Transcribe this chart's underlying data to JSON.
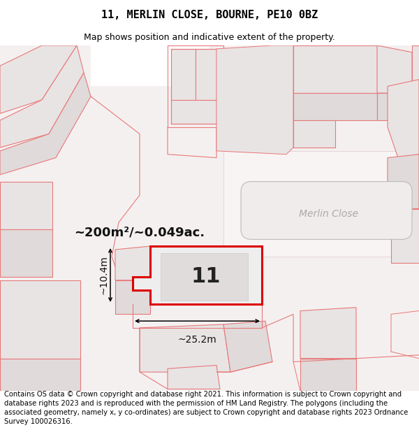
{
  "title": "11, MERLIN CLOSE, BOURNE, PE10 0BZ",
  "subtitle": "Map shows position and indicative extent of the property.",
  "footer": "Contains OS data © Crown copyright and database right 2021. This information is subject to Crown copyright and database rights 2023 and is reproduced with the permission of HM Land Registry. The polygons (including the associated geometry, namely x, y co-ordinates) are subject to Crown copyright and database rights 2023 Ordnance Survey 100026316.",
  "bg_color": "#f5f0f0",
  "road_label": "Merlin Close",
  "area_label": "~200m²/~0.049ac.",
  "plot_number": "11",
  "dim_width": "~25.2m",
  "dim_height": "~10.4m",
  "plot_color_fill": "#e8e4e4",
  "plot_color_edge": "#e87878",
  "highlight_edge": "#dd0000",
  "highlight_fill": "#eeeeee",
  "title_fontsize": 11,
  "subtitle_fontsize": 9,
  "footer_fontsize": 7.2,
  "road_label_color": "#aaaaaa"
}
